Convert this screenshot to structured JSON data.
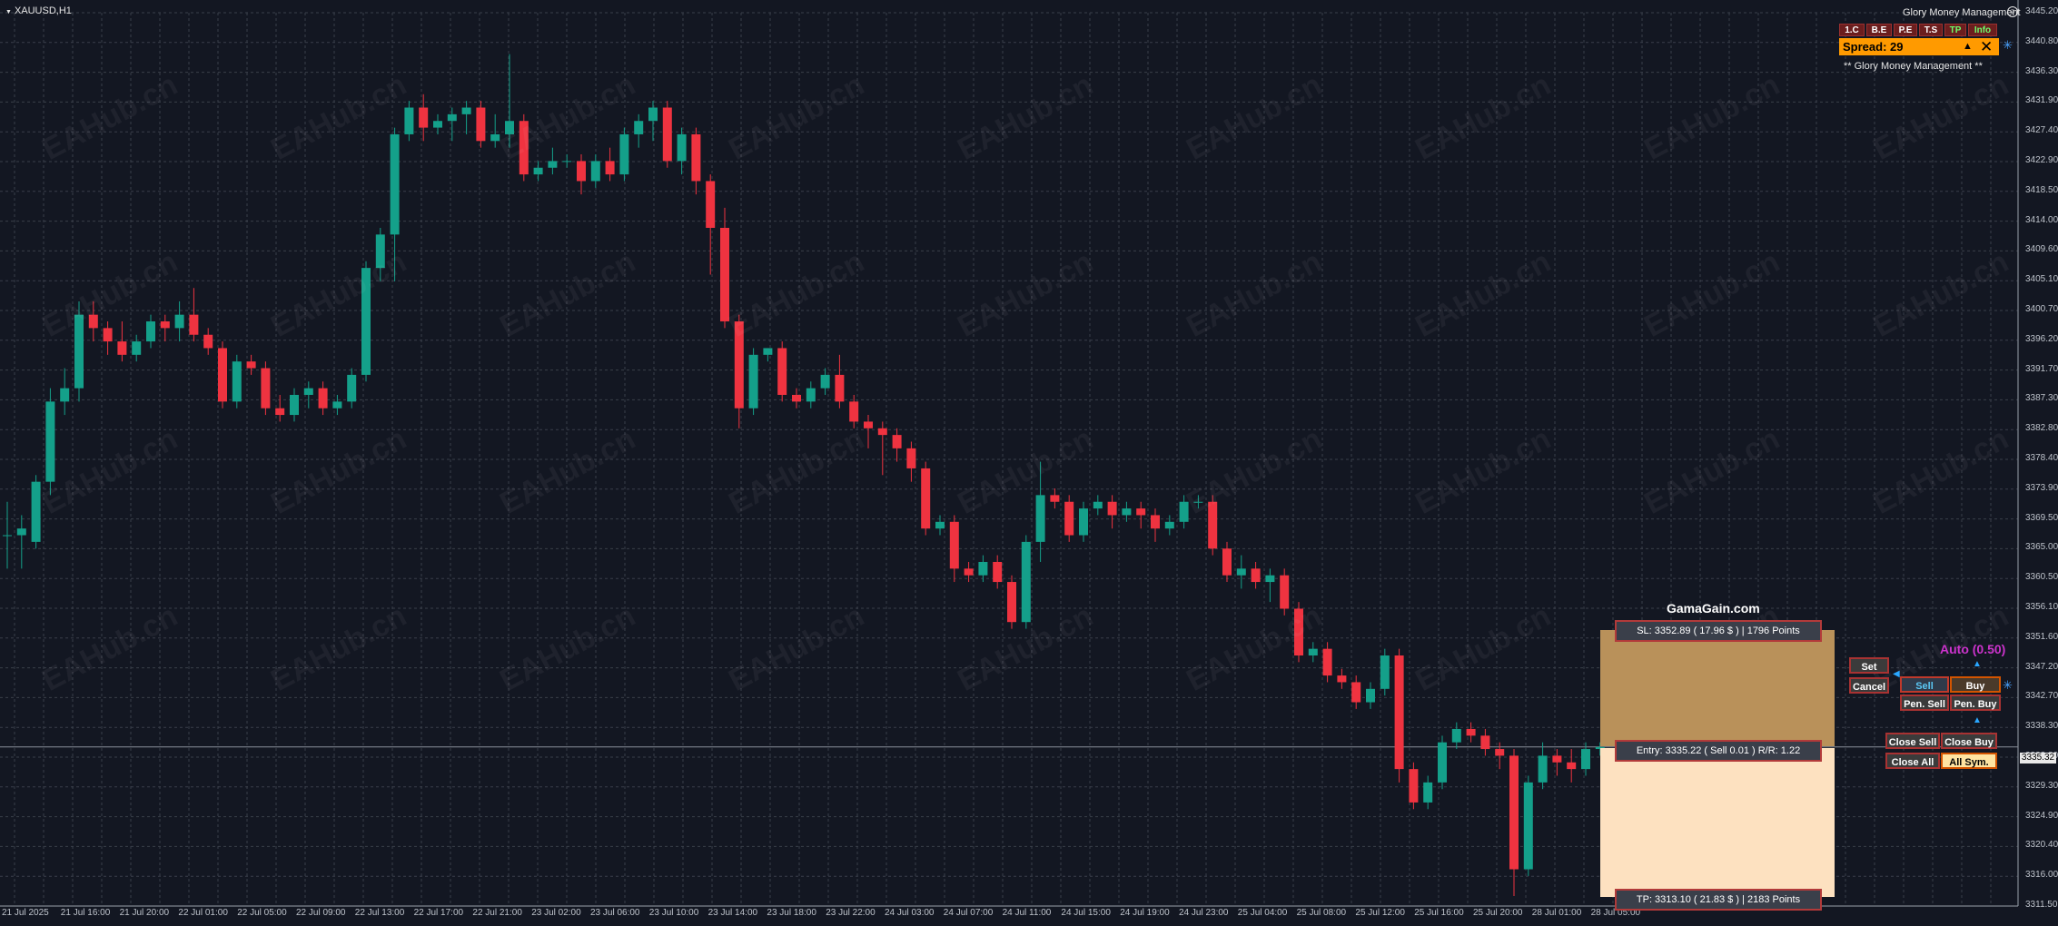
{
  "window": {
    "title": "XAUUSD,H1"
  },
  "colors": {
    "background": "#131722",
    "grid": "#3a3f4a",
    "bull": "#14a08a",
    "bear": "#ef3340",
    "sl_zone": "#b9915a",
    "tp_zone": "#fde1c0",
    "spread_bg": "#ff9a00",
    "auto_text": "#cc33cc"
  },
  "price_axis": [
    "3445.20",
    "3440.80",
    "3436.30",
    "3431.90",
    "3427.40",
    "3422.90",
    "3418.50",
    "3414.00",
    "3409.60",
    "3405.10",
    "3400.70",
    "3396.20",
    "3391.70",
    "3387.30",
    "3382.80",
    "3378.40",
    "3373.90",
    "3369.50",
    "3365.00",
    "3360.50",
    "3356.10",
    "3351.60",
    "3347.20",
    "3342.70",
    "3338.30",
    "3333.80",
    "3329.30",
    "3324.90",
    "3320.40",
    "3316.00",
    "3311.50"
  ],
  "current_price": "3335.32",
  "time_axis": [
    "21 Jul 2025",
    "21 Jul 16:00",
    "21 Jul 20:00",
    "22 Jul 01:00",
    "22 Jul 05:00",
    "22 Jul 09:00",
    "22 Jul 13:00",
    "22 Jul 17:00",
    "22 Jul 21:00",
    "23 Jul 02:00",
    "23 Jul 06:00",
    "23 Jul 10:00",
    "23 Jul 14:00",
    "23 Jul 18:00",
    "23 Jul 22:00",
    "24 Jul 03:00",
    "24 Jul 07:00",
    "24 Jul 11:00",
    "24 Jul 15:00",
    "24 Jul 19:00",
    "24 Jul 23:00",
    "25 Jul 04:00",
    "25 Jul 08:00",
    "25 Jul 12:00",
    "25 Jul 16:00",
    "25 Jul 20:00",
    "28 Jul 01:00",
    "28 Jul 05:00"
  ],
  "watermark": "EAHub.cn",
  "chart_data": {
    "type": "candlestick",
    "symbol": "XAUUSD",
    "timeframe": "H1",
    "ylim": [
      3311.5,
      3445.2
    ],
    "candles": [
      [
        3367.0,
        3372.0,
        3362.0,
        3367.0
      ],
      [
        3367.0,
        3370.0,
        3362.0,
        3368.0
      ],
      [
        3366.0,
        3376.0,
        3365.0,
        3375.0
      ],
      [
        3375.0,
        3389.0,
        3373.0,
        3387.0
      ],
      [
        3387.0,
        3392.0,
        3385.0,
        3389.0
      ],
      [
        3389.0,
        3402.0,
        3387.0,
        3400.0
      ],
      [
        3400.0,
        3402.0,
        3396.0,
        3398.0
      ],
      [
        3398.0,
        3399.0,
        3394.0,
        3396.0
      ],
      [
        3396.0,
        3399.0,
        3393.0,
        3394.0
      ],
      [
        3394.0,
        3397.0,
        3393.0,
        3396.0
      ],
      [
        3396.0,
        3400.0,
        3395.0,
        3399.0
      ],
      [
        3399.0,
        3400.0,
        3396.0,
        3398.0
      ],
      [
        3398.0,
        3402.0,
        3396.0,
        3400.0
      ],
      [
        3400.0,
        3404.0,
        3396.0,
        3397.0
      ],
      [
        3397.0,
        3398.0,
        3394.0,
        3395.0
      ],
      [
        3395.0,
        3396.0,
        3386.0,
        3387.0
      ],
      [
        3387.0,
        3394.0,
        3386.0,
        3393.0
      ],
      [
        3393.0,
        3394.0,
        3391.0,
        3392.0
      ],
      [
        3392.0,
        3393.0,
        3385.0,
        3386.0
      ],
      [
        3386.0,
        3388.0,
        3384.0,
        3385.0
      ],
      [
        3385.0,
        3389.0,
        3384.0,
        3388.0
      ],
      [
        3388.0,
        3390.0,
        3386.0,
        3389.0
      ],
      [
        3389.0,
        3390.0,
        3385.0,
        3386.0
      ],
      [
        3386.0,
        3388.0,
        3385.0,
        3387.0
      ],
      [
        3387.0,
        3392.0,
        3386.0,
        3391.0
      ],
      [
        3391.0,
        3408.0,
        3390.0,
        3407.0
      ],
      [
        3407.0,
        3413.0,
        3405.0,
        3412.0
      ],
      [
        3412.0,
        3428.0,
        3405.0,
        3427.0
      ],
      [
        3427.0,
        3432.0,
        3426.0,
        3431.0
      ],
      [
        3431.0,
        3433.0,
        3426.0,
        3428.0
      ],
      [
        3428.0,
        3430.0,
        3427.0,
        3429.0
      ],
      [
        3429.0,
        3431.0,
        3426.0,
        3430.0
      ],
      [
        3430.0,
        3432.0,
        3427.0,
        3431.0
      ],
      [
        3431.0,
        3432.0,
        3425.0,
        3426.0
      ],
      [
        3426.0,
        3430.0,
        3425.0,
        3427.0
      ],
      [
        3427.0,
        3439.0,
        3425.0,
        3429.0
      ],
      [
        3429.0,
        3430.0,
        3420.0,
        3421.0
      ],
      [
        3421.0,
        3423.0,
        3420.0,
        3422.0
      ],
      [
        3422.0,
        3425.0,
        3421.0,
        3423.0
      ],
      [
        3423.0,
        3424.0,
        3422.0,
        3423.0
      ],
      [
        3423.0,
        3424.0,
        3418.0,
        3420.0
      ],
      [
        3420.0,
        3424.0,
        3419.0,
        3423.0
      ],
      [
        3423.0,
        3425.0,
        3420.0,
        3421.0
      ],
      [
        3421.0,
        3428.0,
        3420.0,
        3427.0
      ],
      [
        3427.0,
        3430.0,
        3425.0,
        3429.0
      ],
      [
        3429.0,
        3432.0,
        3426.0,
        3431.0
      ],
      [
        3431.0,
        3432.0,
        3422.0,
        3423.0
      ],
      [
        3423.0,
        3428.0,
        3421.0,
        3427.0
      ],
      [
        3427.0,
        3428.0,
        3418.0,
        3420.0
      ],
      [
        3420.0,
        3421.0,
        3406.0,
        3413.0
      ],
      [
        3413.0,
        3416.0,
        3398.0,
        3399.0
      ],
      [
        3399.0,
        3400.0,
        3383.0,
        3386.0
      ],
      [
        3386.0,
        3395.0,
        3385.0,
        3394.0
      ],
      [
        3394.0,
        3395.0,
        3393.0,
        3395.0
      ],
      [
        3395.0,
        3396.0,
        3387.0,
        3388.0
      ],
      [
        3388.0,
        3389.0,
        3386.0,
        3387.0
      ],
      [
        3387.0,
        3390.0,
        3386.0,
        3389.0
      ],
      [
        3389.0,
        3392.0,
        3388.0,
        3391.0
      ],
      [
        3391.0,
        3394.0,
        3386.0,
        3387.0
      ],
      [
        3387.0,
        3388.0,
        3383.0,
        3384.0
      ],
      [
        3384.0,
        3385.0,
        3380.0,
        3383.0
      ],
      [
        3383.0,
        3384.0,
        3376.0,
        3382.0
      ],
      [
        3382.0,
        3383.0,
        3378.0,
        3380.0
      ],
      [
        3380.0,
        3381.0,
        3375.0,
        3377.0
      ],
      [
        3377.0,
        3378.0,
        3367.0,
        3368.0
      ],
      [
        3368.0,
        3370.0,
        3367.0,
        3369.0
      ],
      [
        3369.0,
        3370.0,
        3360.0,
        3362.0
      ],
      [
        3362.0,
        3363.0,
        3360.0,
        3361.0
      ],
      [
        3361.0,
        3364.0,
        3360.0,
        3363.0
      ],
      [
        3363.0,
        3364.0,
        3359.0,
        3360.0
      ],
      [
        3360.0,
        3361.0,
        3353.0,
        3354.0
      ],
      [
        3354.0,
        3367.0,
        3353.0,
        3366.0
      ],
      [
        3366.0,
        3378.0,
        3363.0,
        3373.0
      ],
      [
        3373.0,
        3374.0,
        3371.0,
        3372.0
      ],
      [
        3372.0,
        3373.0,
        3366.0,
        3367.0
      ],
      [
        3367.0,
        3372.0,
        3366.0,
        3371.0
      ],
      [
        3371.0,
        3373.0,
        3370.0,
        3372.0
      ],
      [
        3372.0,
        3373.0,
        3368.0,
        3370.0
      ],
      [
        3370.0,
        3372.0,
        3369.0,
        3371.0
      ],
      [
        3371.0,
        3372.0,
        3368.0,
        3370.0
      ],
      [
        3370.0,
        3371.0,
        3366.0,
        3368.0
      ],
      [
        3368.0,
        3370.0,
        3367.0,
        3369.0
      ],
      [
        3369.0,
        3373.0,
        3368.0,
        3372.0
      ],
      [
        3372.0,
        3373.0,
        3371.0,
        3372.0
      ],
      [
        3372.0,
        3373.0,
        3364.0,
        3365.0
      ],
      [
        3365.0,
        3366.0,
        3360.0,
        3361.0
      ],
      [
        3361.0,
        3364.0,
        3359.0,
        3362.0
      ],
      [
        3362.0,
        3363.0,
        3359.0,
        3360.0
      ],
      [
        3360.0,
        3362.0,
        3357.0,
        3361.0
      ],
      [
        3361.0,
        3362.0,
        3355.0,
        3356.0
      ],
      [
        3356.0,
        3357.0,
        3348.0,
        3349.0
      ],
      [
        3349.0,
        3351.0,
        3348.0,
        3350.0
      ],
      [
        3350.0,
        3351.0,
        3345.0,
        3346.0
      ],
      [
        3346.0,
        3347.0,
        3344.0,
        3345.0
      ],
      [
        3345.0,
        3346.0,
        3341.0,
        3342.0
      ],
      [
        3342.0,
        3345.0,
        3341.0,
        3344.0
      ],
      [
        3344.0,
        3350.0,
        3343.0,
        3349.0
      ],
      [
        3349.0,
        3350.0,
        3330.0,
        3332.0
      ],
      [
        3332.0,
        3333.0,
        3326.0,
        3327.0
      ],
      [
        3327.0,
        3331.0,
        3326.0,
        3330.0
      ],
      [
        3330.0,
        3337.0,
        3329.0,
        3336.0
      ],
      [
        3336.0,
        3339.0,
        3335.0,
        3338.0
      ],
      [
        3338.0,
        3339.0,
        3336.0,
        3337.0
      ],
      [
        3337.0,
        3338.0,
        3334.0,
        3335.0
      ],
      [
        3335.0,
        3336.0,
        3332.0,
        3334.0
      ],
      [
        3334.0,
        3335.0,
        3313.0,
        3317.0
      ],
      [
        3317.0,
        3331.0,
        3316.0,
        3330.0
      ],
      [
        3330.0,
        3336.0,
        3329.0,
        3334.0
      ],
      [
        3334.0,
        3335.0,
        3331.0,
        3333.0
      ],
      [
        3333.0,
        3335.0,
        3330.0,
        3332.0
      ],
      [
        3332.0,
        3336.0,
        3331.0,
        3335.0
      ],
      [
        3335.0,
        3336.0,
        3334.0,
        3335.3
      ]
    ]
  },
  "trade_panel": {
    "brand": "GamaGain.com",
    "sl": "SL: 3352.89   ( 17.96 $ )   |   1796 Points",
    "entry": "Entry: 3335.22   ( Sell 0.01 )   R/R: 1.22",
    "tp": "TP: 3313.10   ( 21.83 $ )   |   2183 Points"
  },
  "controls": {
    "set": "Set",
    "cancel": "Cancel",
    "auto": "Auto (0.50)",
    "sell": "Sell",
    "buy": "Buy",
    "pen_sell": "Pen. Sell",
    "pen_buy": "Pen. Buy",
    "close_sell": "Close Sell",
    "close_buy": "Close Buy",
    "close_all": "Close All",
    "all_sym": "All Sym."
  },
  "top_panel": {
    "title": "Glory Money Management",
    "buttons": [
      "1.C",
      "B.E",
      "P.E",
      "T.S",
      "TP",
      "Info"
    ],
    "spread": "Spread: 29",
    "note": "**  Glory Money Management  **"
  }
}
